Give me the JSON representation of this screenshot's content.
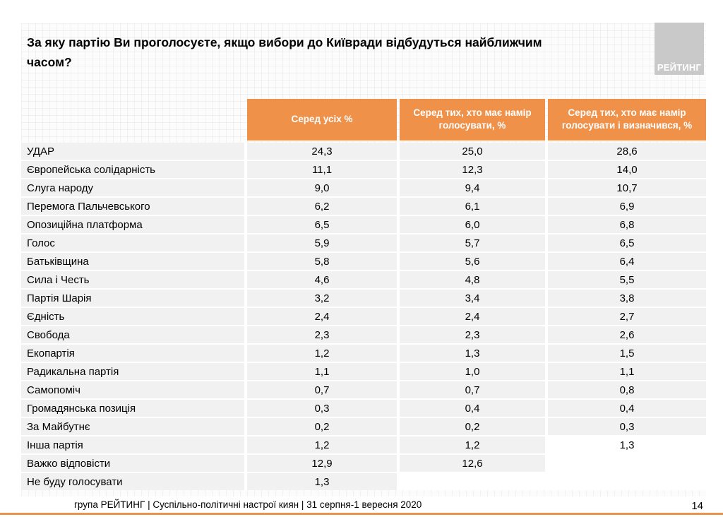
{
  "title": {
    "line1": "За яку партію Ви проголосуєте, якщо вибори до Київради відбудуться найближчим",
    "line2": "часом?"
  },
  "logo_text": "РЕЙТИНГ",
  "table": {
    "columns": [
      "Серед усіх %",
      "Серед тих, хто має намір голосувати, %",
      "Серед тих, хто має намір голосувати і визначився, %"
    ],
    "rows": [
      {
        "label": "УДАР",
        "values": [
          "24,3",
          "25,0",
          "28,6"
        ]
      },
      {
        "label": "Європейська солідарність",
        "values": [
          "11,1",
          "12,3",
          "14,0"
        ]
      },
      {
        "label": "Слуга народу",
        "values": [
          "9,0",
          "9,4",
          "10,7"
        ]
      },
      {
        "label": "Перемога Пальчевського",
        "values": [
          "6,2",
          "6,1",
          "6,9"
        ]
      },
      {
        "label": "Опозиційна платформа",
        "values": [
          "6,5",
          "6,0",
          "6,8"
        ]
      },
      {
        "label": "Голос",
        "values": [
          "5,9",
          "5,7",
          "6,5"
        ]
      },
      {
        "label": "Батьківщина",
        "values": [
          "5,8",
          "5,6",
          "6,4"
        ]
      },
      {
        "label": "Сила і Честь",
        "values": [
          "4,6",
          "4,8",
          "5,5"
        ]
      },
      {
        "label": "Партія Шарія",
        "values": [
          "3,2",
          "3,4",
          "3,8"
        ]
      },
      {
        "label": "Єдність",
        "values": [
          "2,4",
          "2,4",
          "2,7"
        ]
      },
      {
        "label": "Свобода",
        "values": [
          "2,3",
          "2,3",
          "2,6"
        ]
      },
      {
        "label": "Екопартія",
        "values": [
          "1,2",
          "1,3",
          "1,5"
        ]
      },
      {
        "label": "Радикальна партія",
        "values": [
          "1,1",
          "1,0",
          "1,1"
        ]
      },
      {
        "label": "Самопоміч",
        "values": [
          "0,7",
          "0,7",
          "0,8"
        ]
      },
      {
        "label": "Громадянська позиція",
        "values": [
          "0,3",
          "0,4",
          "0,4"
        ]
      },
      {
        "label": "За Майбутнє",
        "values": [
          "0,2",
          "0,2",
          "0,3"
        ]
      },
      {
        "label": "Інша партія",
        "values": [
          "1,2",
          "1,2",
          "1,3"
        ],
        "unshaded": [
          2
        ]
      },
      {
        "label": "Важко відповісти",
        "values": [
          "12,9",
          "12,6",
          ""
        ],
        "unshaded": [
          2
        ]
      },
      {
        "label": "Не буду голосувати",
        "values": [
          "1,3",
          "",
          ""
        ],
        "unshaded": [
          1,
          2
        ]
      }
    ]
  },
  "footer": {
    "source": "група РЕЙТИНГ  |  Суспільно-політичні настрої киян | 31 серпня-1 вересня  2020",
    "page_number": "14"
  },
  "colors": {
    "accent_orange": "#F0914A",
    "header_underline_orange": "#F6C697",
    "row_gray": "#F1F1F1",
    "logo_gray": "#C9C9C9"
  }
}
